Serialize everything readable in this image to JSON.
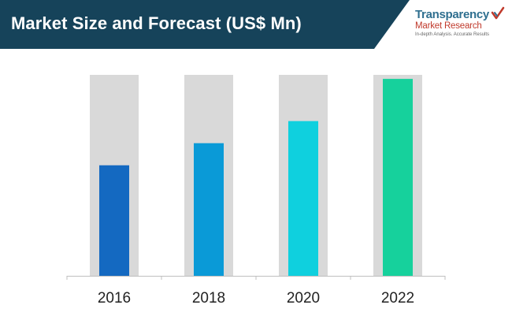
{
  "header": {
    "title": "Market Size and Forecast (US$ Mn)",
    "banner_color": "#16435a"
  },
  "logo": {
    "name_line1": "Transparency",
    "name_line2": "Market Research",
    "tagline": "In-depth Analysis. Accurate Results",
    "icon": "check-chevron-icon"
  },
  "chart_data": {
    "type": "bar",
    "title": "Market Size and Forecast (US$ Mn)",
    "xlabel": "",
    "ylabel": "",
    "categories": [
      "2016",
      "2018",
      "2020",
      "2022"
    ],
    "values": [
      55,
      66,
      77,
      98
    ],
    "ylim": [
      0,
      100
    ],
    "grid": false,
    "value_axis_shown": false,
    "background_track_color": "#d9d9d9",
    "bar_colors": [
      "#1469c1",
      "#0a9ad7",
      "#0fd0de",
      "#16d19c"
    ]
  }
}
